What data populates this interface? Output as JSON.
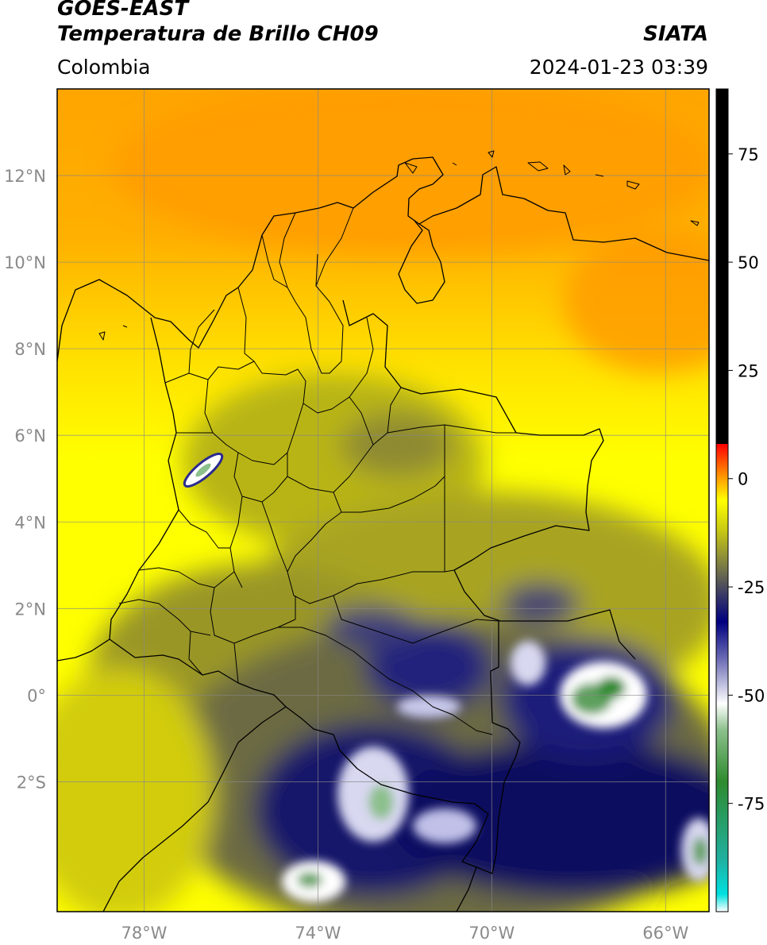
{
  "header": {
    "satellite": "GOES-EAST",
    "product": "Temperatura de Brillo CH09",
    "region": "Colombia",
    "source": "SIATA",
    "datetime": "2024-01-23 03:39"
  },
  "map": {
    "lon_range": [
      -80,
      -65
    ],
    "lat_range": [
      -5,
      14
    ],
    "grid": true,
    "lat_ticks": [
      {
        "value": 12,
        "label": "12°N"
      },
      {
        "value": 10,
        "label": "10°N"
      },
      {
        "value": 8,
        "label": "8°N"
      },
      {
        "value": 6,
        "label": "6°N"
      },
      {
        "value": 4,
        "label": "4°N"
      },
      {
        "value": 2,
        "label": "2°N"
      },
      {
        "value": 0,
        "label": "0°"
      },
      {
        "value": -2,
        "label": "2°S"
      }
    ],
    "lon_ticks": [
      {
        "value": -78,
        "label": "78°W"
      },
      {
        "value": -74,
        "label": "74°W"
      },
      {
        "value": -70,
        "label": "70°W"
      },
      {
        "value": -66,
        "label": "66°W"
      }
    ]
  },
  "colorbar": {
    "range": [
      -100,
      90
    ],
    "ticks": [
      {
        "value": 75,
        "label": "75"
      },
      {
        "value": 50,
        "label": "50"
      },
      {
        "value": 25,
        "label": "25"
      },
      {
        "value": 0,
        "label": "0"
      },
      {
        "value": -25,
        "label": "-25"
      },
      {
        "value": -50,
        "label": "-50"
      },
      {
        "value": -75,
        "label": "-75"
      }
    ],
    "stops": [
      {
        "value": -100,
        "color": "#ffffff"
      },
      {
        "value": -96,
        "color": "#00e0e0"
      },
      {
        "value": -88,
        "color": "#20b0a0"
      },
      {
        "value": -70,
        "color": "#2e8b2e"
      },
      {
        "value": -58,
        "color": "#8cc08c"
      },
      {
        "value": -52,
        "color": "#ffffff"
      },
      {
        "value": -42,
        "color": "#7070b8"
      },
      {
        "value": -33,
        "color": "#000080"
      },
      {
        "value": -27,
        "color": "#383868"
      },
      {
        "value": -22,
        "color": "#6a6a50"
      },
      {
        "value": -12,
        "color": "#c8c814"
      },
      {
        "value": -5,
        "color": "#ffff00"
      },
      {
        "value": 0,
        "color": "#ffa000"
      },
      {
        "value": 8,
        "color": "#ff0000"
      },
      {
        "value": 8.01,
        "color": "#000000"
      },
      {
        "value": 90,
        "color": "#000000"
      }
    ]
  }
}
